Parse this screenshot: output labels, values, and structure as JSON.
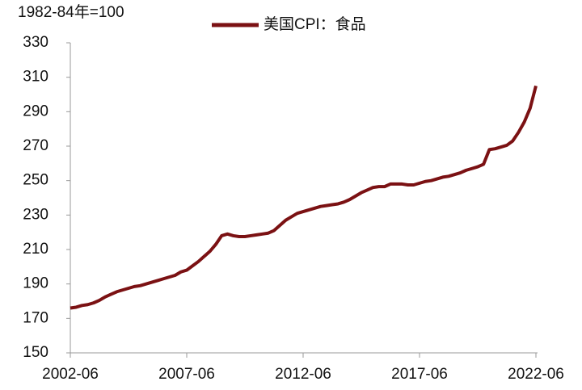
{
  "chart_data": {
    "type": "line",
    "ylabel": "1982-84年=100",
    "x": [
      "2002-06",
      "2002-09",
      "2002-12",
      "2003-03",
      "2003-06",
      "2003-09",
      "2003-12",
      "2004-03",
      "2004-06",
      "2004-09",
      "2004-12",
      "2005-03",
      "2005-06",
      "2005-09",
      "2005-12",
      "2006-03",
      "2006-06",
      "2006-09",
      "2006-12",
      "2007-03",
      "2007-06",
      "2007-09",
      "2007-12",
      "2008-03",
      "2008-06",
      "2008-09",
      "2008-12",
      "2009-03",
      "2009-06",
      "2009-09",
      "2009-12",
      "2010-03",
      "2010-06",
      "2010-09",
      "2010-12",
      "2011-03",
      "2011-06",
      "2011-09",
      "2011-12",
      "2012-03",
      "2012-06",
      "2012-09",
      "2012-12",
      "2013-03",
      "2013-06",
      "2013-09",
      "2013-12",
      "2014-03",
      "2014-06",
      "2014-09",
      "2014-12",
      "2015-03",
      "2015-06",
      "2015-09",
      "2015-12",
      "2016-03",
      "2016-06",
      "2016-09",
      "2016-12",
      "2017-03",
      "2017-06",
      "2017-09",
      "2017-12",
      "2018-03",
      "2018-06",
      "2018-09",
      "2018-12",
      "2019-03",
      "2019-06",
      "2019-09",
      "2019-12",
      "2020-03",
      "2020-06",
      "2020-09",
      "2020-12",
      "2021-03",
      "2021-06",
      "2021-09",
      "2021-12",
      "2022-03",
      "2022-06"
    ],
    "series": [
      {
        "name": "美国CPI：食品",
        "color": "#7b1113",
        "values": [
          176,
          176.5,
          177.5,
          178,
          179,
          180.5,
          182.5,
          184,
          185.5,
          186.5,
          187.5,
          188.5,
          189,
          190,
          191,
          192,
          193,
          194,
          195,
          197,
          198,
          200.5,
          203,
          206,
          209,
          213,
          218,
          219,
          218,
          217.5,
          217.5,
          218,
          218.5,
          219,
          219.5,
          221,
          224,
          227,
          229,
          231,
          232,
          233,
          234,
          235,
          235.5,
          236,
          236.5,
          237.5,
          239,
          241,
          243,
          244.5,
          246,
          246.5,
          246.5,
          248,
          248,
          248,
          247.5,
          247.5,
          248.5,
          249.5,
          250,
          251,
          252,
          252.5,
          253.5,
          254.5,
          256,
          257,
          258,
          259.5,
          268,
          268.5,
          269.5,
          270.5,
          273,
          278,
          284,
          292,
          305
        ]
      }
    ],
    "xticks": [
      "2002-06",
      "2007-06",
      "2012-06",
      "2017-06",
      "2022-06"
    ],
    "ylim": [
      150,
      330
    ],
    "yticks": [
      150,
      170,
      190,
      210,
      230,
      250,
      270,
      290,
      310,
      330
    ],
    "grid": false,
    "legend": "top"
  }
}
